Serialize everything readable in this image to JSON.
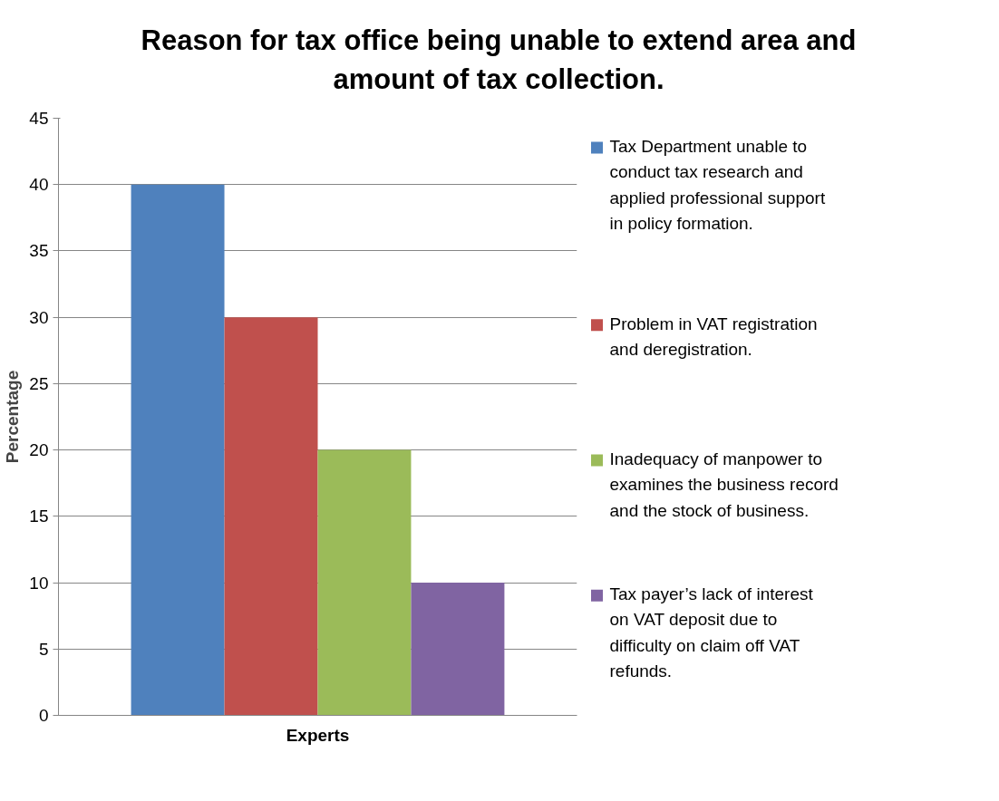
{
  "chart_data": {
    "type": "bar",
    "title": "Reason for tax office being unable to extend area and amount of tax collection.",
    "ylabel": "Percentage",
    "categories": [
      "Experts"
    ],
    "series": [
      {
        "name": "Tax Department unable to conduct tax research and applied professional support in policy formation.",
        "color": "#4f81bd",
        "values": [
          40
        ]
      },
      {
        "name": "Problem in VAT registration and deregistration.",
        "color": "#c0504d",
        "values": [
          30
        ]
      },
      {
        "name": "Inadequacy of manpower to examines the business record and the stock of business.",
        "color": "#9bbb59",
        "values": [
          20
        ]
      },
      {
        "name": "Tax payer’s lack of interest on VAT deposit due to difficulty on claim off VAT refunds.",
        "color": "#8064a2",
        "values": [
          10
        ]
      }
    ],
    "ylim": [
      0,
      45
    ],
    "yticks": [
      0,
      5,
      10,
      15,
      20,
      25,
      30,
      35,
      40,
      45
    ],
    "grid": "y",
    "legend": "right"
  }
}
